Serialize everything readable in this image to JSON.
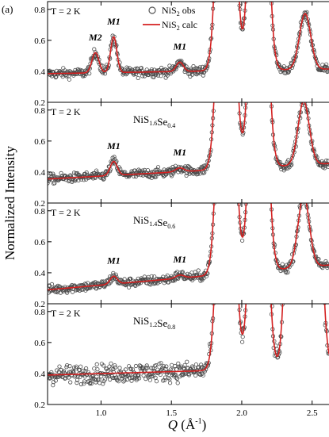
{
  "figure_label": "(a)",
  "chart_data": {
    "type": "scatter",
    "xlabel": {
      "q": "Q",
      "unit_open": " (Å",
      "exp": "-1",
      "unit_close": ")"
    },
    "ylabel": "Normalized Intensity",
    "xlim": [
      0.62,
      2.62
    ],
    "ylim": [
      0.2,
      0.85
    ],
    "x_ticks": [
      "1.0",
      "1.5",
      "2.0",
      "2.5"
    ],
    "x_tick_values": [
      1.0,
      1.5,
      2.0,
      2.5
    ],
    "y_ticks": [
      "0.2",
      "0.4",
      "0.6",
      "0.8"
    ],
    "y_tick_values": [
      0.2,
      0.4,
      0.6,
      0.8
    ],
    "legend": [
      {
        "text": "NiS",
        "sub": "2",
        "tail": " obs",
        "marker": "open-circle",
        "color": "#555555"
      },
      {
        "text": "NiS",
        "sub": "2",
        "tail": " calc",
        "marker": "line",
        "color": "#d42020"
      }
    ],
    "panels": [
      {
        "temperature": "T = 2 K",
        "composition": [
          {
            "t": "NiS",
            "s": "2"
          }
        ],
        "show_composition": false,
        "baseline": 0.385,
        "slope": 0.015,
        "noise": 0.03,
        "bragg": [
          {
            "center": 1.89,
            "amp": 3.5,
            "width": 0.045
          },
          {
            "center": 2.12,
            "amp": 3.5,
            "width": 0.045
          },
          {
            "center": 2.45,
            "amp": 0.36,
            "width": 0.04
          }
        ],
        "magnetic": [
          {
            "label": "M2",
            "center": 0.96,
            "amp": 0.13,
            "width": 0.025
          },
          {
            "label": "M1",
            "center": 1.09,
            "amp": 0.23,
            "width": 0.022
          },
          {
            "label": "M1",
            "center": 1.56,
            "amp": 0.06,
            "width": 0.025
          }
        ]
      },
      {
        "temperature": "T = 2 K",
        "composition": [
          {
            "t": "NiS",
            "s": "1.6"
          },
          {
            "t": "Se",
            "s": "0.4"
          }
        ],
        "show_composition": true,
        "baseline": 0.355,
        "slope": 0.05,
        "noise": 0.03,
        "bragg": [
          {
            "center": 1.89,
            "amp": 3.0,
            "width": 0.045
          },
          {
            "center": 2.12,
            "amp": 3.0,
            "width": 0.045
          },
          {
            "center": 2.44,
            "amp": 0.41,
            "width": 0.04
          }
        ],
        "magnetic": [
          {
            "label": "M1",
            "center": 1.09,
            "amp": 0.09,
            "width": 0.025
          },
          {
            "label": "M1",
            "center": 1.56,
            "amp": 0.025,
            "width": 0.03
          }
        ]
      },
      {
        "temperature": "T = 2 K",
        "composition": [
          {
            "t": "NiS",
            "s": "1.4"
          },
          {
            "t": "Se",
            "s": "0.6"
          }
        ],
        "show_composition": true,
        "baseline": 0.29,
        "slope": 0.08,
        "noise": 0.03,
        "bragg": [
          {
            "center": 1.89,
            "amp": 3.0,
            "width": 0.045
          },
          {
            "center": 2.12,
            "amp": 3.0,
            "width": 0.045
          },
          {
            "center": 2.44,
            "amp": 0.46,
            "width": 0.04
          }
        ],
        "magnetic": [
          {
            "label": "M1",
            "center": 1.09,
            "amp": 0.05,
            "width": 0.025
          },
          {
            "label": "M1",
            "center": 1.56,
            "amp": 0.02,
            "width": 0.03
          }
        ]
      },
      {
        "temperature": "T = 2 K",
        "composition": [
          {
            "t": "NiS",
            "s": "1.2"
          },
          {
            "t": "Se",
            "s": "0.8"
          }
        ],
        "show_composition": true,
        "baseline": 0.39,
        "slope": 0.025,
        "noise": 0.06,
        "bragg": [
          {
            "center": 1.89,
            "amp": 3.0,
            "width": 0.045
          },
          {
            "center": 2.12,
            "amp": 3.0,
            "width": 0.045
          },
          {
            "center": 2.37,
            "amp": 3.0,
            "width": 0.04
          },
          {
            "center": 2.5,
            "amp": 3.0,
            "width": 0.045
          }
        ],
        "magnetic": []
      }
    ]
  }
}
